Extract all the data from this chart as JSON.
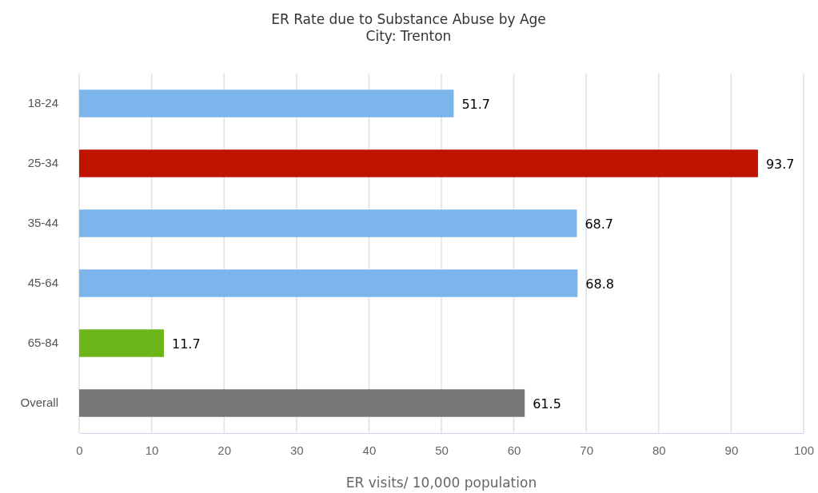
{
  "chart_data": {
    "type": "bar",
    "orientation": "horizontal",
    "title": "ER Rate due to Substance Abuse by Age",
    "subtitle": "City: Trenton",
    "xlabel": "ER visits/ 10,000 population",
    "categories": [
      "18-24",
      "25-34",
      "35-44",
      "45-64",
      "65-84",
      "Overall"
    ],
    "values": [
      51.7,
      93.7,
      68.7,
      68.8,
      11.7,
      61.5
    ],
    "colors": [
      "#7cb5ec",
      "#bf1400",
      "#7cb5ec",
      "#7cb5ec",
      "#6cb61a",
      "#777777"
    ],
    "xlim": [
      0,
      100
    ],
    "xticks": [
      0,
      10,
      20,
      30,
      40,
      50,
      60,
      70,
      80,
      90,
      100
    ],
    "grid": "x",
    "data_labels": true
  }
}
